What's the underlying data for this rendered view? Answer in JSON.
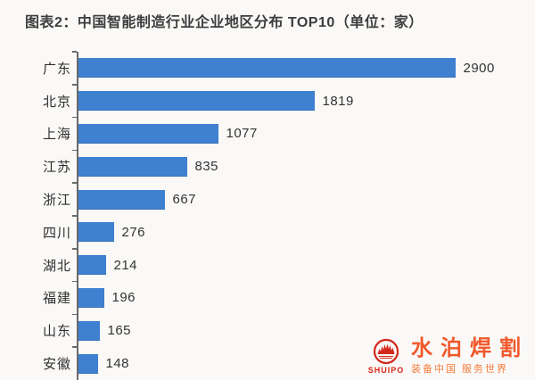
{
  "chart_data": {
    "type": "bar",
    "orientation": "horizontal",
    "title": "图表2：中国智能制造行业企业地区分布 TOP10（单位：家）",
    "unit_label": "单位：家",
    "categories": [
      "广东",
      "北京",
      "上海",
      "江苏",
      "浙江",
      "四川",
      "湖北",
      "福建",
      "山东",
      "安徽"
    ],
    "values": [
      2900,
      1819,
      1077,
      835,
      667,
      276,
      214,
      196,
      165,
      148
    ],
    "xlim": [
      0,
      2900
    ],
    "grid": false,
    "value_labels_shown": true,
    "bar_color": "#3f80d1",
    "axis_color": "#6a6a6a",
    "text_color": "#333333"
  },
  "watermark": {
    "brand": "水泊焊割",
    "brand_latin": "SHUIPO",
    "tagline": "装备中国 服务世界",
    "brand_color": "#f1582b",
    "emblem_color": "#d3281c"
  }
}
